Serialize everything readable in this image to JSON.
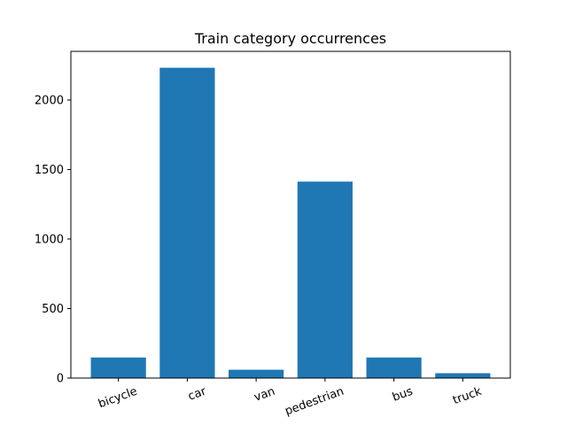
{
  "chart_data": {
    "type": "bar",
    "title": "Train category occurrences",
    "xlabel": "",
    "ylabel": "",
    "categories": [
      "bicycle",
      "car",
      "van",
      "pedestrian",
      "bus",
      "truck"
    ],
    "values": [
      148,
      2232,
      60,
      1413,
      148,
      35
    ],
    "ylim": [
      0,
      2350
    ],
    "yticks": [
      0,
      500,
      1000,
      1500,
      2000
    ],
    "xtick_rotation_deg": -20,
    "bar_color": "#1f77b4",
    "grid": false,
    "legend": "none"
  }
}
